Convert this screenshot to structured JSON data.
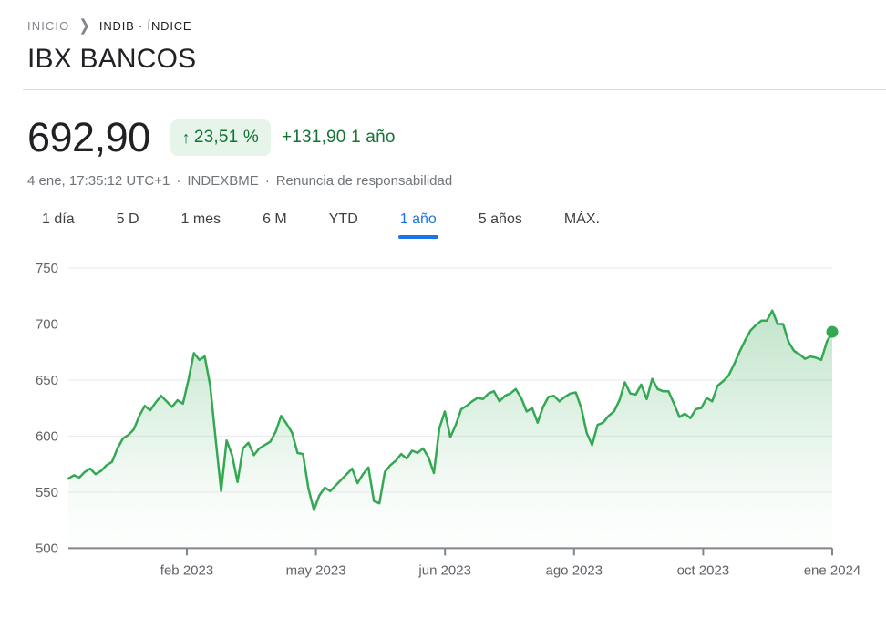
{
  "breadcrumb": {
    "home": "INICIO",
    "separator": "❯",
    "current": "INDIB · ÍNDICE"
  },
  "header": {
    "title": "IBX BANCOS"
  },
  "quote": {
    "price": "692,90",
    "up_arrow": "↑",
    "change_percent": "23,51 %",
    "change_absolute": "+131,90",
    "change_period": "1 año",
    "timestamp": "4 ene, 17:35:12 UTC+1",
    "separator": "·",
    "exchange": "INDEXBME",
    "disclaimer": "Renuncia de responsabilidad"
  },
  "tabs": [
    {
      "label": "1 día",
      "active": false
    },
    {
      "label": "5 D",
      "active": false
    },
    {
      "label": "1 mes",
      "active": false
    },
    {
      "label": "6 M",
      "active": false
    },
    {
      "label": "YTD",
      "active": false
    },
    {
      "label": "1 año",
      "active": true
    },
    {
      "label": "5 años",
      "active": false
    },
    {
      "label": "MÁX.",
      "active": false
    }
  ],
  "colors": {
    "accent_blue": "#1a73e8",
    "green_text": "#137333",
    "badge_bg": "#e6f4ea",
    "line_green": "#34a853",
    "gridline": "#e8eaed",
    "axis": "#80868b",
    "axis_label": "#5f6368"
  },
  "chart_data": {
    "type": "area",
    "title": "IBX BANCOS — 1 año",
    "ylabel": "",
    "xlabel": "",
    "ylim": [
      500,
      750
    ],
    "y_ticks": [
      500,
      550,
      600,
      650,
      700,
      750
    ],
    "x_tick_labels": [
      "feb 2023",
      "may 2023",
      "jun 2023",
      "ago 2023",
      "oct 2023",
      "ene 2024"
    ],
    "grid": true,
    "legend": "none",
    "last_value": "692,90",
    "values": [
      562,
      565,
      563,
      568,
      571,
      566,
      569,
      574,
      577,
      589,
      598,
      601,
      606,
      618,
      627,
      623,
      630,
      636,
      631,
      626,
      632,
      629,
      650,
      674,
      668,
      671,
      645,
      597,
      551,
      596,
      583,
      559,
      589,
      594,
      583,
      589,
      592,
      595,
      604,
      618,
      611,
      603,
      585,
      584,
      553,
      534,
      547,
      554,
      551,
      556,
      561,
      566,
      571,
      558,
      566,
      572,
      542,
      540,
      568,
      574,
      578,
      584,
      580,
      587,
      585,
      589,
      581,
      567,
      607,
      622,
      599,
      610,
      624,
      627,
      631,
      634,
      633,
      638,
      640,
      631,
      636,
      638,
      642,
      634,
      622,
      625,
      612,
      626,
      635,
      636,
      631,
      635,
      638,
      639,
      625,
      603,
      592,
      610,
      612,
      618,
      622,
      632,
      648,
      638,
      637,
      646,
      633,
      651,
      642,
      640,
      640,
      629,
      617,
      620,
      616,
      624,
      625,
      634,
      631,
      645,
      649,
      654,
      664,
      675,
      685,
      694,
      699,
      703,
      703,
      712,
      700,
      700,
      684,
      676,
      673,
      669,
      671,
      670,
      668,
      684,
      693
    ]
  }
}
